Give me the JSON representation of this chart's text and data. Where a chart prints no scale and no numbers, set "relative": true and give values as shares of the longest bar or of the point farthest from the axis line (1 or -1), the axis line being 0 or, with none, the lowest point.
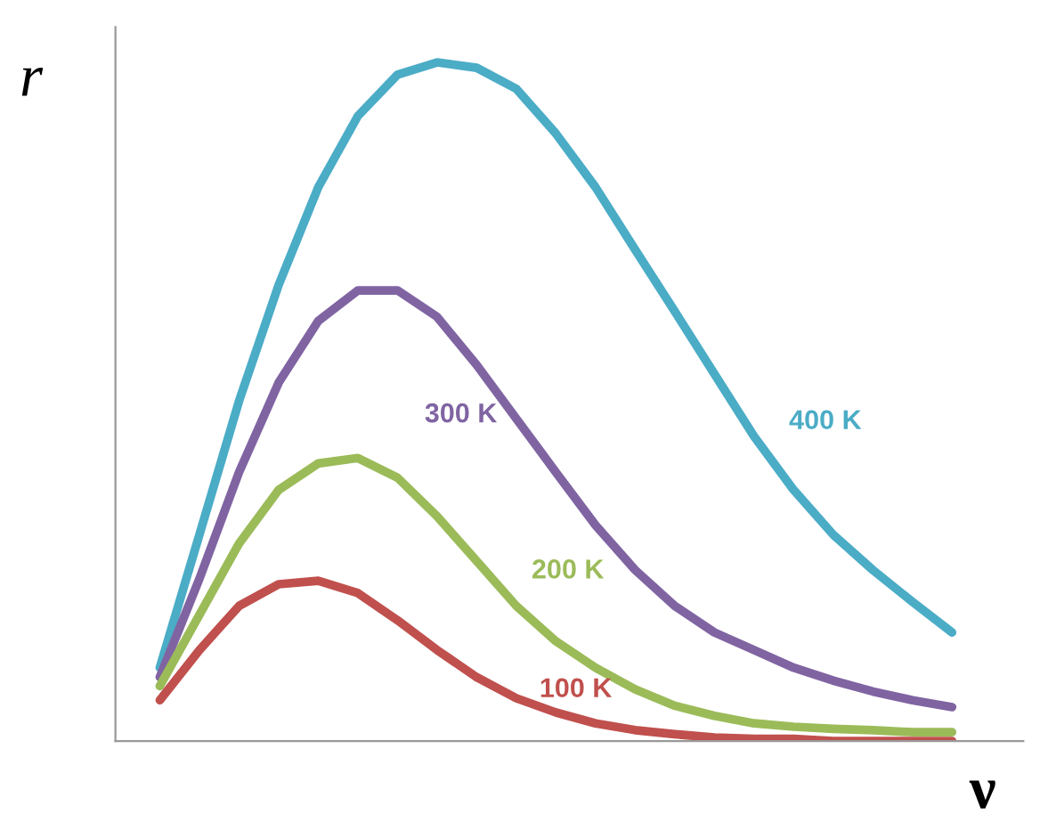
{
  "chart_data": {
    "type": "line",
    "relative": true,
    "xlabel": "ν",
    "ylabel": "r",
    "categories": [
      null,
      null,
      null,
      null,
      null,
      null,
      null,
      null,
      null,
      null,
      null,
      null,
      null,
      null,
      null,
      null,
      null,
      null,
      null,
      null,
      null
    ],
    "legend": false,
    "marker": "none",
    "line_style": "solid",
    "series": [
      {
        "name": "400 K",
        "color": "#4bacc6",
        "values": [
          0.108,
          0.304,
          0.501,
          0.672,
          0.816,
          0.921,
          0.982,
          1,
          0.992,
          0.961,
          0.895,
          0.816,
          0.724,
          0.633,
          0.541,
          0.449,
          0.37,
          0.304,
          0.252,
          0.205,
          0.16
        ]
      },
      {
        "name": "300 K",
        "color": "#8064a2",
        "values": [
          0.094,
          0.239,
          0.396,
          0.528,
          0.619,
          0.664,
          0.664,
          0.625,
          0.554,
          0.475,
          0.396,
          0.318,
          0.252,
          0.199,
          0.16,
          0.134,
          0.108,
          0.089,
          0.073,
          0.06,
          0.05
        ]
      },
      {
        "name": "200 K",
        "color": "#9bbb59",
        "values": [
          0.081,
          0.186,
          0.291,
          0.37,
          0.409,
          0.417,
          0.388,
          0.331,
          0.265,
          0.199,
          0.147,
          0.108,
          0.076,
          0.052,
          0.037,
          0.026,
          0.021,
          0.018,
          0.016,
          0.013,
          0.013
        ]
      },
      {
        "name": "100 K",
        "color": "#c0504d",
        "values": [
          0.06,
          0.134,
          0.199,
          0.231,
          0.236,
          0.218,
          0.178,
          0.134,
          0.094,
          0.063,
          0.042,
          0.026,
          0.016,
          0.01,
          0.005,
          0.003,
          0.003,
          0,
          0,
          0,
          0
        ]
      }
    ]
  }
}
